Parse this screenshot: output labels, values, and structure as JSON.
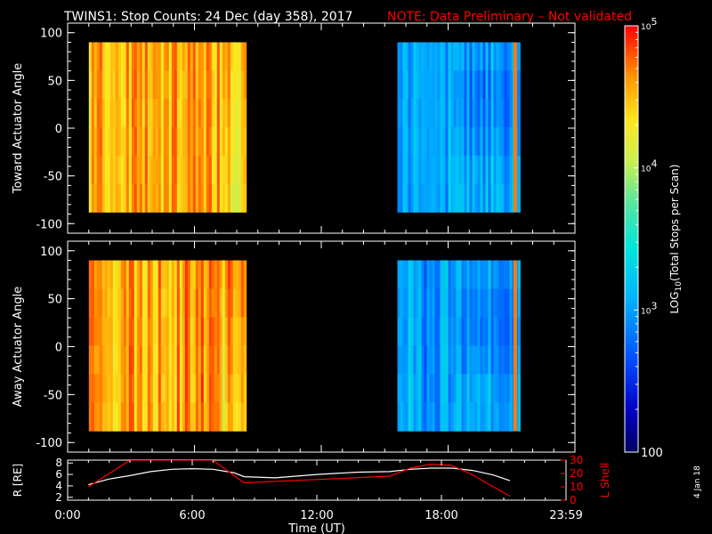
{
  "title": {
    "main": "TWINS1: Stop Counts: 24 Dec (day 358), 2017",
    "note": "NOTE: Data Preliminary – Not validated"
  },
  "side_date": "4 Jan 18",
  "colors": {
    "background": "#000000",
    "foreground": "#ffffff",
    "note": "#ff0000",
    "lshell": "#ff0000"
  },
  "chart_data": [
    {
      "type": "heatmap",
      "panel": "toward",
      "ylabel": "Toward Actuator Angle",
      "ylim": [
        -110,
        110
      ],
      "yticks": [
        100,
        50,
        0,
        -50,
        -100
      ],
      "xlim": [
        0,
        24
      ],
      "data_blocks": [
        {
          "x_start": 1.0,
          "x_end": 8.4,
          "y_start": -88,
          "y_end": 90,
          "level": "high",
          "log10_range": [
            4.3,
            4.8
          ]
        },
        {
          "x_start": 15.6,
          "x_end": 21.3,
          "y_start": -88,
          "y_end": 90,
          "level": "low",
          "log10_range": [
            2.7,
            3.3
          ]
        }
      ]
    },
    {
      "type": "heatmap",
      "panel": "away",
      "ylabel": "Away Actuator Angle",
      "ylim": [
        -110,
        110
      ],
      "yticks": [
        100,
        50,
        0,
        -50,
        -100
      ],
      "xlim": [
        0,
        24
      ],
      "data_blocks": [
        {
          "x_start": 1.0,
          "x_end": 8.4,
          "y_start": -88,
          "y_end": 90,
          "level": "high",
          "log10_range": [
            4.3,
            4.9
          ]
        },
        {
          "x_start": 15.6,
          "x_end": 21.3,
          "y_start": -88,
          "y_end": 90,
          "level": "low",
          "log10_range": [
            2.7,
            3.3
          ]
        }
      ]
    },
    {
      "type": "line",
      "panel": "orbit",
      "ylabel": "R [RE]",
      "ylim": [
        1.5,
        8.5
      ],
      "yticks": [
        8,
        6,
        4,
        2
      ],
      "y2label": "L Shell",
      "y2lim": [
        0,
        30
      ],
      "y2ticks": [
        30,
        20,
        10,
        0
      ],
      "xlabel": "Time (UT)",
      "xlim": [
        0,
        24
      ],
      "xticks": [
        "0:00",
        "6:00",
        "12:00",
        "18:00",
        "23:59"
      ],
      "series": [
        {
          "axis": "left",
          "x": [
            1.0,
            2.0,
            3.0,
            4.0,
            5.0,
            6.0,
            7.0,
            8.0,
            8.5,
            10,
            12,
            14,
            15.5,
            16.5,
            17.5,
            18.5,
            19.5,
            20.5,
            21.3
          ],
          "values": [
            4.2,
            5.2,
            5.8,
            6.5,
            6.9,
            7.0,
            6.9,
            6.3,
            5.6,
            5.4,
            6.0,
            6.4,
            6.5,
            6.9,
            7.1,
            7.1,
            6.7,
            5.9,
            4.9
          ]
        },
        {
          "axis": "right",
          "x": [
            1.0,
            2.0,
            3.0,
            7.0,
            8.5,
            15.5,
            16.5,
            17.5,
            18.5,
            19.5,
            20.5,
            21.3
          ],
          "values": [
            10,
            20,
            30,
            30,
            13,
            18,
            24,
            27,
            26,
            19,
            10,
            3
          ]
        }
      ]
    },
    {
      "type": "colorbar",
      "label": "LOG10(Total Stops per Scan)",
      "scale": "log",
      "range": [
        100,
        100000
      ],
      "ticks": [
        "10^5",
        "10^4",
        "10^3",
        "100"
      ],
      "tick_values": [
        100000,
        10000,
        1000,
        100
      ]
    }
  ]
}
